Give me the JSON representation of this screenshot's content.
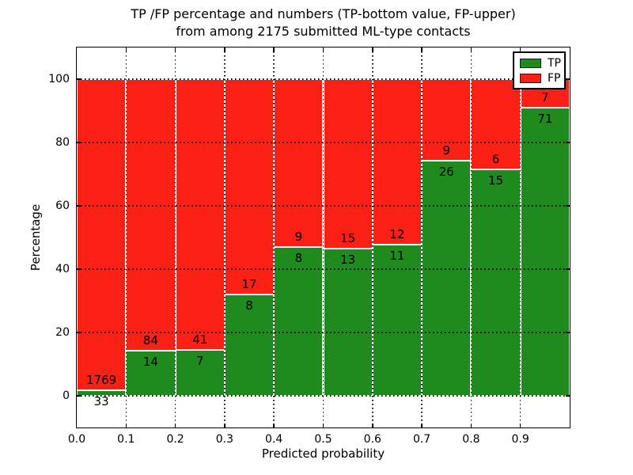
{
  "title": {
    "line1": "TP /FP percentage and numbers (TP-bottom value, FP-upper)",
    "line2": "from among 2175 submitted ML-type contacts"
  },
  "chart_data": {
    "type": "bar",
    "stacked": true,
    "normalized": "each bin scaled to 100%",
    "title": "TP /FP percentage and numbers (TP-bottom value, FP-upper)\nfrom among 2175 submitted ML-type contacts",
    "xlabel": "Predicted probability",
    "ylabel": "Percentage",
    "xlim": [
      0.0,
      1.0
    ],
    "ylim": [
      -10,
      110
    ],
    "grid": "dotted",
    "legend_position": "upper right",
    "bar_edge_color": "#ffffff",
    "bin_width": 0.1,
    "bin_starts": [
      0.0,
      0.1,
      0.2,
      0.3,
      0.4,
      0.5,
      0.6,
      0.7,
      0.8,
      0.9
    ],
    "x_tick_values": [
      0.0,
      0.1,
      0.2,
      0.3,
      0.4,
      0.5,
      0.6,
      0.7,
      0.8,
      0.9
    ],
    "x_tick_labels": [
      "0.0",
      "0.1",
      "0.2",
      "0.3",
      "0.4",
      "0.5",
      "0.6",
      "0.7",
      "0.8",
      "0.9"
    ],
    "y_tick_values": [
      0,
      20,
      40,
      60,
      80,
      100
    ],
    "y_tick_labels": [
      "0",
      "20",
      "40",
      "60",
      "80",
      "100"
    ],
    "series": [
      {
        "name": "TP",
        "color": "#1f8b1f",
        "counts": [
          33,
          14,
          7,
          8,
          8,
          13,
          11,
          26,
          15,
          71
        ]
      },
      {
        "name": "FP",
        "color": "#fb2015",
        "counts": [
          1769,
          84,
          41,
          17,
          9,
          15,
          12,
          9,
          6,
          7
        ]
      }
    ],
    "tp_percent_by_bin": [
      1.83,
      14.29,
      14.58,
      32.0,
      47.06,
      46.43,
      47.83,
      74.29,
      71.43,
      91.03
    ],
    "total_contacts": 2175
  }
}
